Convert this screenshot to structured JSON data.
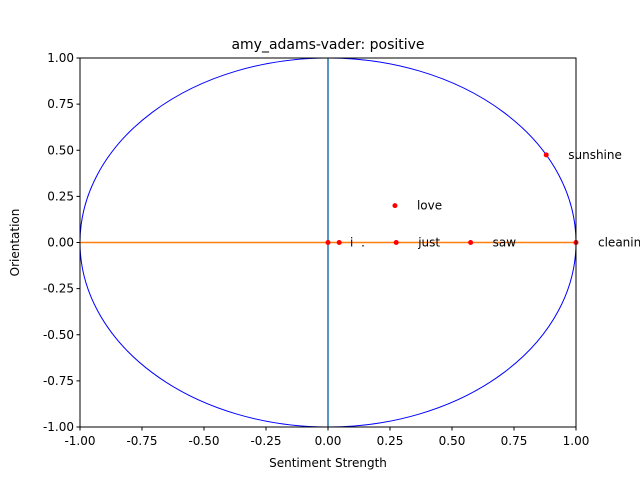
{
  "chart_data": {
    "type": "scatter",
    "title": "amy_adams-vader: positive",
    "xlabel": "Sentiment Strength",
    "ylabel": "Orientation",
    "xlim": [
      -1.0,
      1.0
    ],
    "ylim": [
      -1.0,
      1.0
    ],
    "xticks": [
      "-1.00",
      "-0.75",
      "-0.50",
      "-0.25",
      "0.00",
      "0.25",
      "0.50",
      "0.75",
      "1.00"
    ],
    "yticks": [
      "-1.00",
      "-0.75",
      "-0.50",
      "-0.25",
      "0.00",
      "0.25",
      "0.50",
      "0.75",
      "1.00"
    ],
    "grid": false,
    "unit_circle": true,
    "points": [
      {
        "label": "sunshine",
        "x": 0.88,
        "y": 0.475
      },
      {
        "label": "love",
        "x": 0.27,
        "y": 0.2
      },
      {
        "label": "i",
        "x": 0.0,
        "y": 0.0
      },
      {
        "label": ".",
        "x": 0.045,
        "y": 0.0
      },
      {
        "label": "just",
        "x": 0.275,
        "y": 0.0
      },
      {
        "label": "saw",
        "x": 0.575,
        "y": 0.0
      },
      {
        "label": "cleaning",
        "x": 1.0,
        "y": 0.0
      }
    ],
    "colors": {
      "circle": "#0000ff",
      "horizontal_line": "#ff7f0e",
      "vertical_line": "#1f77b4",
      "points": "#ff0000"
    }
  }
}
